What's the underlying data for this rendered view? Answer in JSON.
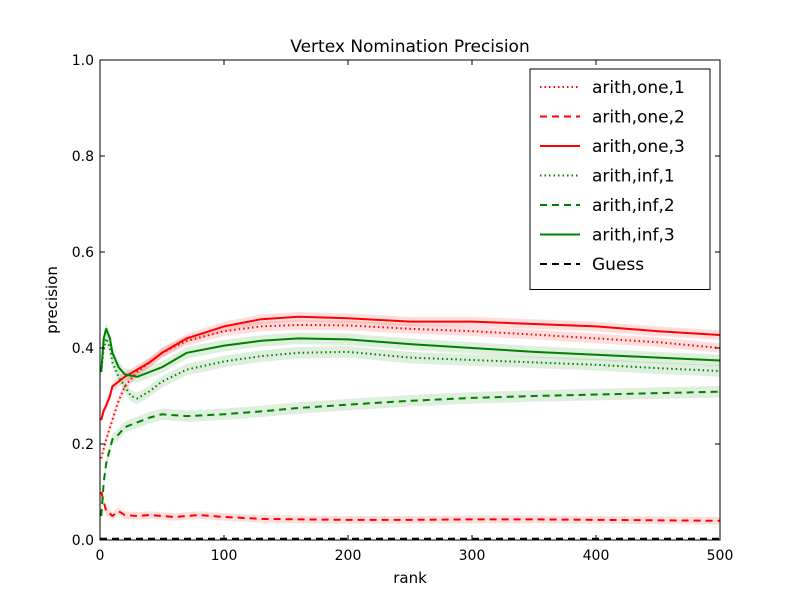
{
  "chart_data": {
    "type": "line",
    "title": "Vertex Nomination Precision",
    "xlabel": "rank",
    "ylabel": "precision",
    "xlim": [
      0,
      500
    ],
    "ylim": [
      0.0,
      1.0
    ],
    "xticks": [
      0,
      100,
      200,
      300,
      400,
      500
    ],
    "xtick_labels": [
      "0",
      "100",
      "200",
      "300",
      "400",
      "500"
    ],
    "yticks": [
      0.0,
      0.2,
      0.4,
      0.6,
      0.8,
      1.0
    ],
    "ytick_labels": [
      "0.0",
      "0.2",
      "0.4",
      "0.6",
      "0.8",
      "1.0"
    ],
    "grid": false,
    "legend_position": "top-right",
    "series": [
      {
        "name": "arith,one,1",
        "color": "#ff0000",
        "style": "dotted",
        "band": 0.01,
        "x": [
          1,
          3,
          5,
          10,
          15,
          20,
          30,
          40,
          50,
          70,
          100,
          130,
          160,
          200,
          250,
          300,
          350,
          400,
          450,
          500
        ],
        "y": [
          0.17,
          0.19,
          0.21,
          0.25,
          0.29,
          0.32,
          0.35,
          0.37,
          0.39,
          0.415,
          0.435,
          0.445,
          0.448,
          0.447,
          0.44,
          0.435,
          0.428,
          0.42,
          0.412,
          0.4
        ]
      },
      {
        "name": "arith,one,2",
        "color": "#ff0000",
        "style": "dashed",
        "band": 0.008,
        "x": [
          1,
          3,
          5,
          8,
          10,
          15,
          20,
          30,
          40,
          60,
          80,
          100,
          130,
          160,
          200,
          250,
          300,
          350,
          400,
          450,
          500
        ],
        "y": [
          0.1,
          0.08,
          0.06,
          0.055,
          0.05,
          0.06,
          0.052,
          0.05,
          0.052,
          0.048,
          0.052,
          0.048,
          0.044,
          0.043,
          0.042,
          0.042,
          0.043,
          0.043,
          0.042,
          0.041,
          0.04
        ]
      },
      {
        "name": "arith,one,3",
        "color": "#ff0000",
        "style": "solid",
        "band": 0.01,
        "x": [
          1,
          3,
          5,
          8,
          10,
          15,
          20,
          30,
          40,
          50,
          70,
          100,
          130,
          160,
          200,
          250,
          300,
          350,
          400,
          450,
          500
        ],
        "y": [
          0.25,
          0.27,
          0.28,
          0.3,
          0.32,
          0.33,
          0.34,
          0.355,
          0.37,
          0.39,
          0.42,
          0.445,
          0.46,
          0.465,
          0.462,
          0.455,
          0.455,
          0.45,
          0.445,
          0.435,
          0.427
        ]
      },
      {
        "name": "arith,inf,1",
        "color": "#008000",
        "style": "dotted",
        "band": 0.012,
        "x": [
          1,
          3,
          5,
          8,
          10,
          15,
          20,
          25,
          30,
          40,
          50,
          70,
          100,
          130,
          160,
          200,
          250,
          300,
          350,
          400,
          450,
          500
        ],
        "y": [
          0.35,
          0.4,
          0.42,
          0.4,
          0.37,
          0.34,
          0.32,
          0.3,
          0.295,
          0.31,
          0.33,
          0.355,
          0.372,
          0.383,
          0.39,
          0.392,
          0.38,
          0.375,
          0.37,
          0.365,
          0.358,
          0.352
        ]
      },
      {
        "name": "arith,inf,2",
        "color": "#008000",
        "style": "dashed",
        "band": 0.012,
        "x": [
          1,
          3,
          5,
          8,
          10,
          15,
          20,
          30,
          40,
          50,
          70,
          100,
          130,
          160,
          200,
          250,
          300,
          350,
          400,
          450,
          500
        ],
        "y": [
          0.05,
          0.12,
          0.16,
          0.19,
          0.21,
          0.22,
          0.235,
          0.245,
          0.255,
          0.262,
          0.258,
          0.262,
          0.268,
          0.275,
          0.282,
          0.29,
          0.296,
          0.3,
          0.303,
          0.306,
          0.309
        ]
      },
      {
        "name": "arith,inf,3",
        "color": "#008000",
        "style": "solid",
        "band": 0.012,
        "x": [
          1,
          3,
          5,
          8,
          10,
          15,
          20,
          30,
          40,
          50,
          70,
          100,
          130,
          160,
          200,
          250,
          300,
          350,
          400,
          450,
          500
        ],
        "y": [
          0.35,
          0.42,
          0.44,
          0.42,
          0.39,
          0.36,
          0.345,
          0.34,
          0.35,
          0.36,
          0.39,
          0.405,
          0.415,
          0.42,
          0.418,
          0.408,
          0.4,
          0.392,
          0.386,
          0.38,
          0.374
        ]
      },
      {
        "name": "Guess",
        "color": "#000000",
        "style": "dashed",
        "band": 0,
        "x": [
          0,
          500
        ],
        "y": [
          0.002,
          0.002
        ]
      }
    ]
  }
}
